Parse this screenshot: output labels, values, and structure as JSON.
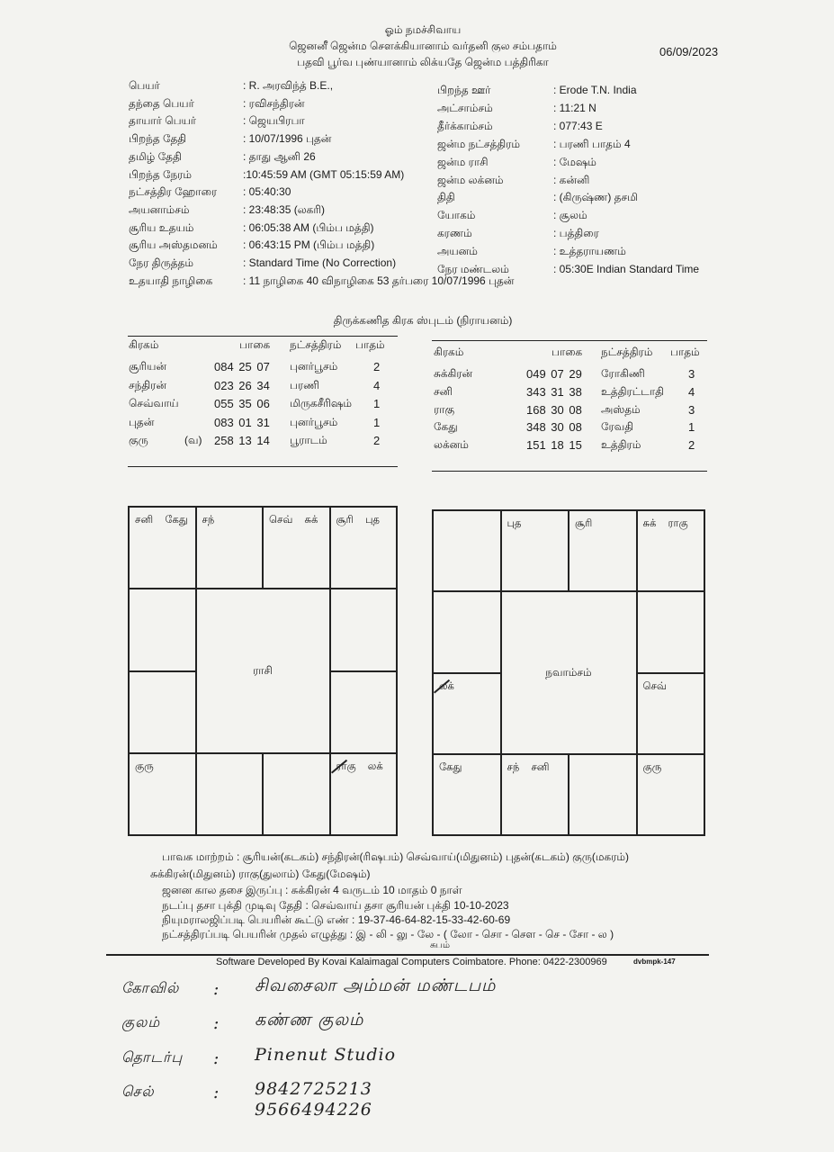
{
  "header": {
    "line1": "ஓம் நமச்சிவாய",
    "line2": "ஜெனனீ ஜென்ம சௌக்கியானாம் வர்தனி குல சம்பதாம்",
    "line3": "பதவி பூர்வ புண்யானாம் லிக்யதே ஜென்ம பத்திரிகா",
    "date": "06/09/2023"
  },
  "details_left": [
    {
      "label": "பெயர்",
      "value": ": R. அரவிந்த் B.E.,"
    },
    {
      "label": "தந்தை பெயர்",
      "value": ": ரவிசந்திரன்"
    },
    {
      "label": "தாயார் பெயர்",
      "value": ": ஜெயபிரபா"
    },
    {
      "label": "பிறந்த தேதி",
      "value": ": 10/07/1996 புதன்"
    },
    {
      "label": "தமிழ் தேதி",
      "value": ": தாது  ஆனி  26"
    },
    {
      "label": "பிறந்த நேரம்",
      "value": ":10:45:59 AM  (GMT 05:15:59 AM)"
    },
    {
      "label": "நட்சத்திர ஹோரை",
      "value": ": 05:40:30"
    },
    {
      "label": "அயனாம்சம்",
      "value": ": 23:48:35 (லகரி)"
    },
    {
      "label": "சூரிய உதயம்",
      "value": ": 06:05:38 AM (பிம்ப மத்தி)"
    },
    {
      "label": "சூரிய அஸ்தமனம்",
      "value": ": 06:43:15 PM (பிம்ப மத்தி)"
    },
    {
      "label": "நேர திருத்தம்",
      "value": ": Standard Time (No Correction)"
    },
    {
      "label": "உதயாதி நாழிகை",
      "value": ": 11 நாழிகை  40 விநாழிகை  53 தர்பரை 10/07/1996 புதன்"
    }
  ],
  "details_right": [
    {
      "label": "பிறந்த ஊர்",
      "value": ": Erode  T.N. India"
    },
    {
      "label": "அட்சாம்சம்",
      "value": ": 11:21 N"
    },
    {
      "label": "தீர்க்காம்சம்",
      "value": ": 077:43 E"
    },
    {
      "label": "ஜன்ம நட்சத்திரம்",
      "value": ": பரணி பாதம் 4"
    },
    {
      "label": "ஜன்ம ராசி",
      "value": ": மேஷம்"
    },
    {
      "label": "ஜன்ம லக்னம்",
      "value": ": கன்னி"
    },
    {
      "label": "திதி",
      "value": ": (கிருஷ்ண) தசமி"
    },
    {
      "label": "யோகம்",
      "value": ": சூலம்"
    },
    {
      "label": "கரணம்",
      "value": ": பத்திரை"
    },
    {
      "label": "அயனம்",
      "value": ": உத்தராயணம்"
    },
    {
      "label": "நேர மண்டலம்",
      "value": ": 05:30E  Indian Standard Time"
    }
  ],
  "planet_table": {
    "title": "திருக்கணித கிரக ஸ்புடம் (நிராயனம்)",
    "headers": [
      "கிரகம்",
      "பாகை",
      "நட்சத்திரம்",
      "பாதம்"
    ],
    "left_rows": [
      {
        "planet": "சூரியன்",
        "retro": "",
        "degree": "084  25  07",
        "star": "புனர்பூசம்",
        "pada": "2"
      },
      {
        "planet": "சந்திரன்",
        "retro": "",
        "degree": "023  26  34",
        "star": "பரணி",
        "pada": "4"
      },
      {
        "planet": "செவ்வாய்",
        "retro": "",
        "degree": "055  35  06",
        "star": "மிருகசீரிஷம்",
        "pada": "1"
      },
      {
        "planet": "புதன்",
        "retro": "",
        "degree": "083  01  31",
        "star": "புனர்பூசம்",
        "pada": "1"
      },
      {
        "planet": "குரு",
        "retro": "(வ)",
        "degree": "258  13  14",
        "star": "பூராடம்",
        "pada": "2"
      }
    ],
    "right_rows": [
      {
        "planet": "சுக்கிரன்",
        "retro": "",
        "degree": "049  07  29",
        "star": "ரோகிணி",
        "pada": "3"
      },
      {
        "planet": "சனி",
        "retro": "",
        "degree": "343  31  38",
        "star": "உத்திரட்டாதி",
        "pada": "4"
      },
      {
        "planet": "ராகு",
        "retro": "",
        "degree": "168  30  08",
        "star": "அஸ்தம்",
        "pada": "3"
      },
      {
        "planet": "கேது",
        "retro": "",
        "degree": "348  30  08",
        "star": "ரேவதி",
        "pada": "1"
      },
      {
        "planet": "லக்னம்",
        "retro": "",
        "degree": "151  18  15",
        "star": "உத்திரம்",
        "pada": "2"
      }
    ]
  },
  "rasi_chart": {
    "title": "ராசி",
    "houses": [
      "சனி கேது",
      "சந்",
      "செவ் சுக்",
      "சூரி புத",
      "",
      "",
      "ராகு லக்",
      "",
      "",
      "குரு",
      "",
      ""
    ]
  },
  "navamsa_chart": {
    "title": "நவாம்சம்",
    "houses": [
      "",
      "புத",
      "சூரி",
      "சுக் ராகு",
      "",
      "செவ்",
      "குரு",
      "",
      "சந் சனி",
      "கேது",
      "லக்",
      ""
    ]
  },
  "footer_text": {
    "bhava": "பாவக மாற்றம் : சூரியன்(கடகம்)     சந்திரன்(ரிஷபம்)     செவ்வாய்(மிதுனம்)     புதன்(கடகம்)     குரு(மகரம்)",
    "bhava2": "சுக்கிரன்(மிதுனம்)  ராகு(துலாம்)  கேது(மேஷம்)",
    "dasa_balance": "ஜனன கால தசை இருப்பு : சுக்கிரன் 4 வருடம் 10 மாதம் 0 நாள்",
    "current_dasa": "நடப்பு தசா புக்தி முடிவு தேதி : செவ்வாய் தசா  சூரியன் புக்தி 10-10-2023",
    "numerology": "நியுமராலஜிப்படி பெயரின் கூட்டு எண்  : 19-37-46-64-82-15-33-42-60-69",
    "name_letters": "நட்சத்திரப்படி பெயரின் முதல் எழுத்து : இ - லி - லு - லே - ( லோ - சொ - சௌ - செ - சோ - ல )",
    "subam": "சுபம்",
    "software": "Software Developed By  Kovai Kalaimagal Computers Coimbatore. Phone: 0422-2300969",
    "code": "dvbmpk-147"
  },
  "handwritten": [
    {
      "label": "கோவில்",
      "value": "சிவசைலா அம்மன் மண்டபம்"
    },
    {
      "label": "குலம்",
      "value": "கண்ண குலம்"
    },
    {
      "label": "தொடர்பு",
      "value": "Pinenut Studio"
    },
    {
      "label": "செல்",
      "value": "9842725213"
    },
    {
      "label": "",
      "value": "9566494226"
    }
  ]
}
